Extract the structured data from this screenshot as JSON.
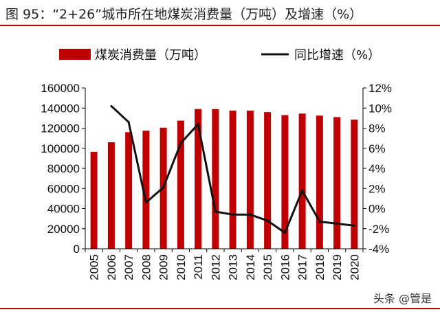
{
  "figure": {
    "title": "图 95：“2+26”城市所在地煤炭消费量（万吨）及增速（%）",
    "watermark": "头条 @管是"
  },
  "colors": {
    "bar": "#c00000",
    "line": "#111111",
    "rule": "#c00000"
  },
  "chart_data": {
    "type": "bar",
    "title": "",
    "categories": [
      "2005",
      "2006",
      "2007",
      "2008",
      "2009",
      "2010",
      "2011",
      "2012",
      "2013",
      "2014",
      "2015",
      "2016",
      "2017",
      "2018",
      "2019",
      "2020"
    ],
    "series": [
      {
        "name": "煤炭消费量（万吨）",
        "type": "bar",
        "axis": "left",
        "values": [
          96500,
          106000,
          116000,
          117500,
          120500,
          127500,
          139000,
          139000,
          137500,
          137500,
          136000,
          133000,
          134500,
          132500,
          131000,
          128500
        ]
      },
      {
        "name": "同比增速（%）",
        "type": "line",
        "axis": "right",
        "values": [
          null,
          10.2,
          8.6,
          0.6,
          2.1,
          6.5,
          8.4,
          -0.3,
          -0.6,
          -0.6,
          -1.2,
          -2.4,
          1.8,
          -1.3,
          -1.5,
          -1.7
        ]
      }
    ],
    "y_left": {
      "ylim": [
        0,
        160000
      ],
      "ticks": [
        "0",
        "20000",
        "40000",
        "60000",
        "80000",
        "100000",
        "120000",
        "140000",
        "160000"
      ]
    },
    "y_right": {
      "ylim": [
        -4,
        12
      ],
      "ticks": [
        "-4%",
        "-2%",
        "0%",
        "2%",
        "4%",
        "6%",
        "8%",
        "10%",
        "12%"
      ]
    },
    "legend": {
      "placement": "top",
      "items": [
        {
          "label": "煤炭消费量（万吨）",
          "kind": "bar"
        },
        {
          "label": "同比增速（%）",
          "kind": "line"
        }
      ]
    },
    "grid": false
  }
}
